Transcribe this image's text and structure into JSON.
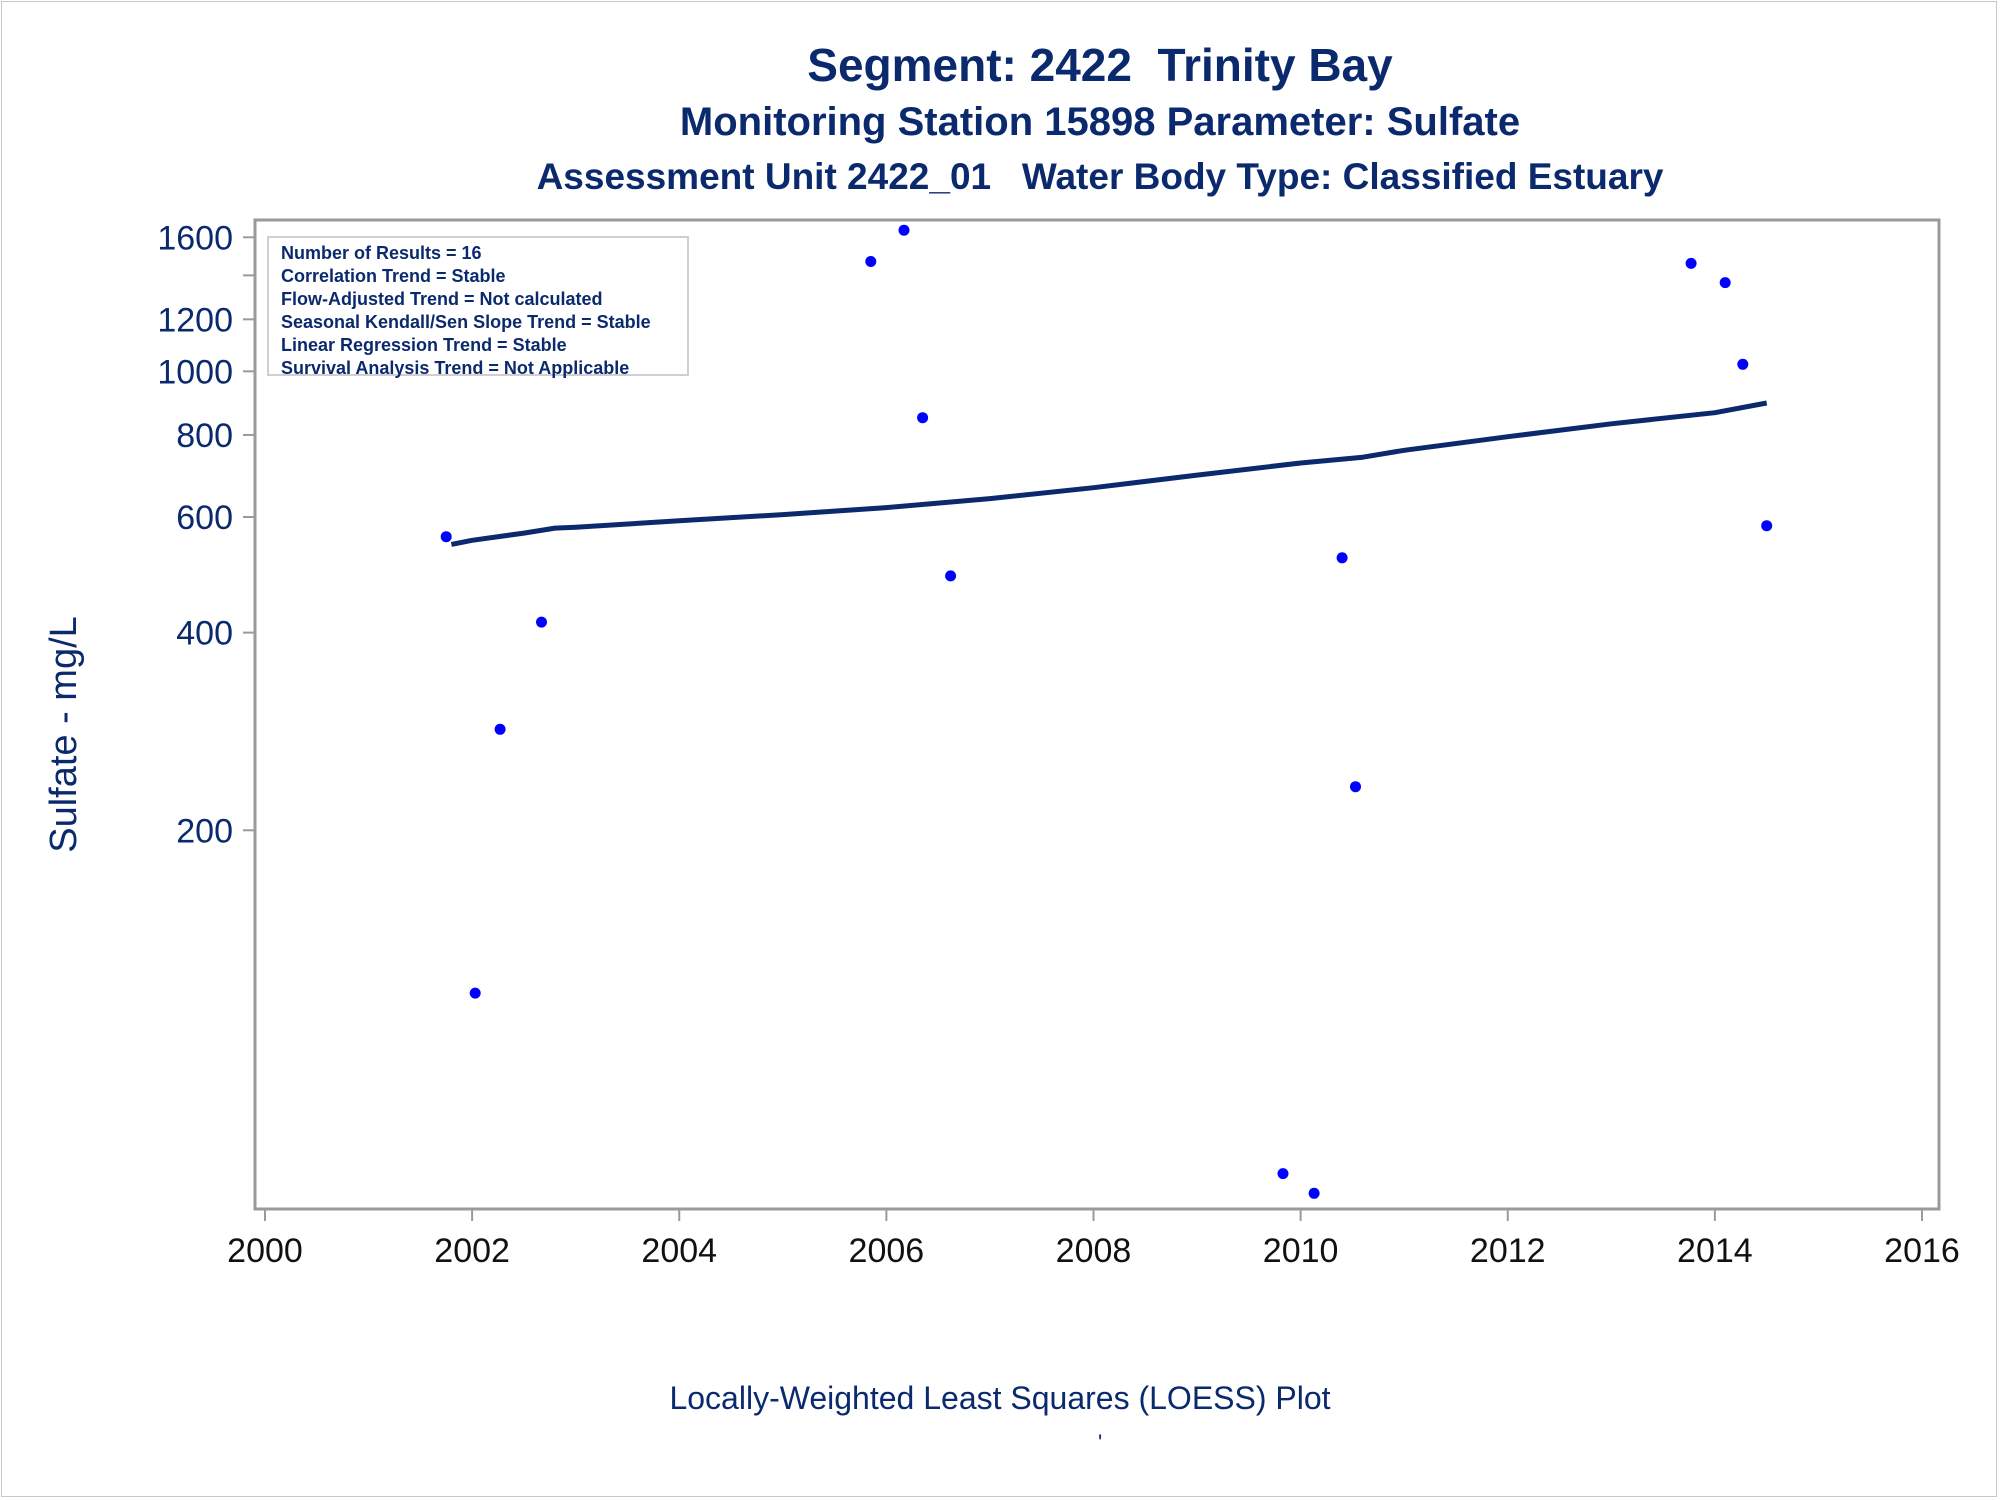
{
  "chart_data": {
    "type": "scatter",
    "title": "Segment: 2422  Trinity Bay",
    "subtitle": "Monitoring Station 15898 Parameter: Sulfate",
    "subtitle2": "Assessment Unit 2422_01   Water Body Type: Classified Estuary",
    "xlabel": "Locally-Weighted Least Squares (LOESS) Plot",
    "ylabel": "Sulfate - mg/L",
    "footnote_mark": "'",
    "yscale": "log",
    "xlim": [
      2000,
      2016
    ],
    "ylim": [
      53,
      1700
    ],
    "x_ticks": [
      "2000",
      "2002",
      "2004",
      "2006",
      "2008",
      "2010",
      "2012",
      "2014",
      "2016"
    ],
    "y_ticks": [
      "200",
      "400",
      "600",
      "800",
      "1000",
      "1200",
      "1600"
    ],
    "y_tick_values": [
      200,
      400,
      600,
      800,
      1000,
      1200,
      1600
    ],
    "y_minor_ticks": [
      1400
    ],
    "grid": false,
    "legend_box": [
      "Number of Results = 16",
      "Correlation Trend = Stable",
      "Flow-Adjusted Trend = Not calculated",
      "Seasonal Kendall/Sen Slope Trend = Stable",
      "Linear Regression Trend = Stable",
      "Survival Analysis Trend = Not Applicable"
    ],
    "points": {
      "x": [
        2001.75,
        2002.03,
        2002.27,
        2002.67,
        2005.85,
        2006.17,
        2006.35,
        2006.62,
        2009.83,
        2010.13,
        2010.4,
        2010.53,
        2013.77,
        2014.1,
        2014.27,
        2014.5
      ],
      "y": [
        560,
        113,
        285,
        415,
        1470,
        1640,
        850,
        488,
        60,
        56,
        520,
        233,
        1460,
        1365,
        1025,
        582
      ]
    },
    "loess": {
      "x": [
        2001.8,
        2002.0,
        2002.5,
        2002.8,
        2003.0,
        2004.0,
        2005.0,
        2006.0,
        2007.0,
        2008.0,
        2009.0,
        2010.0,
        2010.6,
        2011.0,
        2012.0,
        2013.0,
        2014.0,
        2014.5
      ],
      "y": [
        545,
        553,
        567,
        577,
        579,
        592,
        605,
        620,
        640,
        665,
        695,
        725,
        740,
        758,
        795,
        832,
        865,
        895
      ]
    },
    "colors": {
      "text": "#0b2a6e",
      "points": "#0000ff",
      "line": "#0b2a6e",
      "axis": "#9a9a9a"
    }
  }
}
